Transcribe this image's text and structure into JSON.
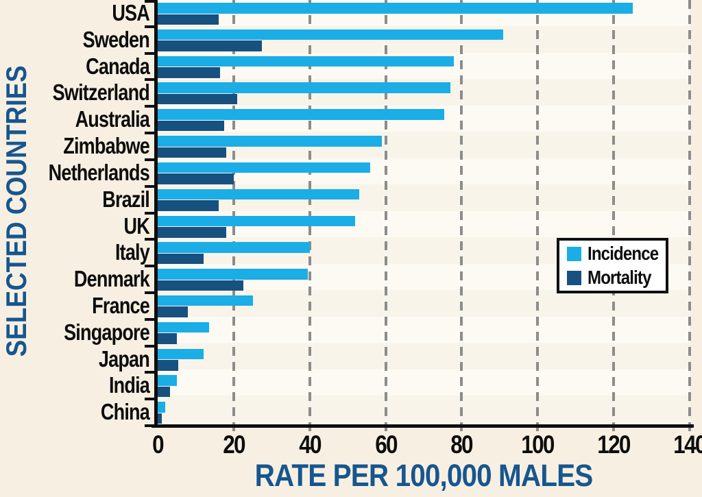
{
  "chart_data": {
    "type": "bar",
    "orientation": "horizontal",
    "title": "",
    "xlabel": "RATE PER 100,000 MALES",
    "ylabel": "SELECTED COUNTRIES",
    "xlim": [
      0,
      140
    ],
    "xticks": [
      0,
      20,
      40,
      60,
      80,
      100,
      120,
      140
    ],
    "grid": "vertical dashed gridlines every 20",
    "legend_position": "center-right",
    "categories": [
      "USA",
      "Sweden",
      "Canada",
      "Switzerland",
      "Australia",
      "Zimbabwe",
      "Netherlands",
      "Brazil",
      "UK",
      "Italy",
      "Denmark",
      "France",
      "Singapore",
      "Japan",
      "India",
      "China"
    ],
    "series": [
      {
        "name": "Incidence",
        "color": "#1BADE6",
        "values": [
          125,
          91,
          78,
          77,
          75.5,
          59,
          56,
          53,
          52,
          40,
          39.5,
          25,
          13.5,
          12,
          5,
          2
        ]
      },
      {
        "name": "Mortality",
        "color": "#16517F",
        "values": [
          16,
          27.5,
          16.5,
          21,
          17.5,
          18,
          20,
          16,
          18,
          12,
          22.5,
          8,
          5,
          5.5,
          3.2,
          1
        ]
      }
    ]
  },
  "colors": {
    "incidence": "#1BADE6",
    "mortality": "#16517F",
    "axis_title_blue": "#17568F",
    "background_cream": "#F7F0E2",
    "plot_background": "#FCFAF3",
    "gridline_gray": "#8C8C8C",
    "axis_black": "#0E0E0E",
    "legend_background": "#FFFFFF"
  }
}
